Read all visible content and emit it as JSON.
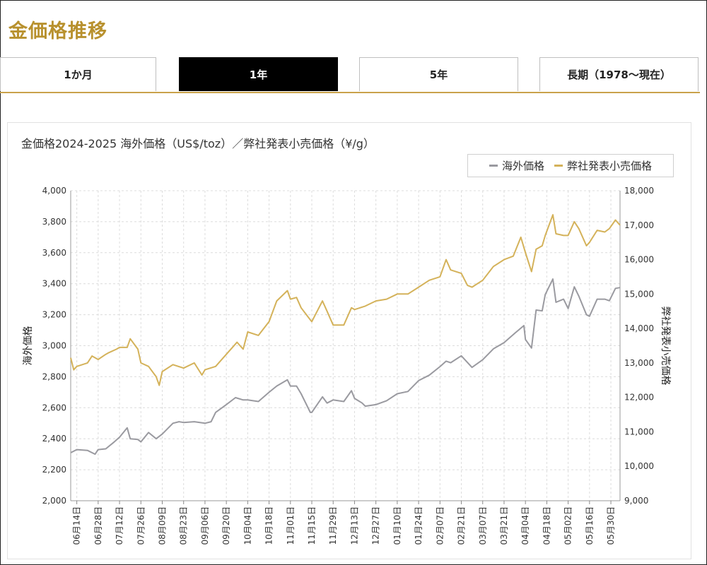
{
  "page_title": "金価格推移",
  "tabs": [
    {
      "label": "1か月",
      "active": false
    },
    {
      "label": "1年",
      "active": true
    },
    {
      "label": "5年",
      "active": false
    },
    {
      "label": "長期（1978〜現在）",
      "active": false
    }
  ],
  "colors": {
    "accent": "#b8912e",
    "overseas": "#9a9aa0",
    "retail": "#d4b25a"
  },
  "chart_data": {
    "type": "line",
    "title": "金価格2024-2025 海外価格（US$/toz）／弊社発表小売価格（¥/g）",
    "y_left_label": "海外価格",
    "y_right_label": "弊社発表小売価格",
    "y_left_range": [
      2000,
      4000
    ],
    "y_right_range": [
      9000,
      18000
    ],
    "y_left_ticks": [
      "2,000",
      "2,200",
      "2,400",
      "2,600",
      "2,800",
      "3,000",
      "3,200",
      "3,400",
      "3,600",
      "3,800",
      "4,000"
    ],
    "y_right_ticks": [
      "9,000",
      "10,000",
      "11,000",
      "12,000",
      "13,000",
      "14,000",
      "15,000",
      "16,000",
      "17,000",
      "18,000"
    ],
    "x_range": [
      "2024-06-10",
      "2025-06-05"
    ],
    "x_tick_dates": [
      "2024-06-14",
      "2024-06-28",
      "2024-07-12",
      "2024-07-26",
      "2024-08-09",
      "2024-08-23",
      "2024-09-06",
      "2024-09-20",
      "2024-10-04",
      "2024-10-18",
      "2024-11-01",
      "2024-11-15",
      "2024-11-29",
      "2024-12-13",
      "2024-12-27",
      "2025-01-10",
      "2025-01-24",
      "2025-02-07",
      "2025-02-21",
      "2025-03-07",
      "2025-03-21",
      "2025-04-04",
      "2025-04-18",
      "2025-05-02",
      "2025-05-16",
      "2025-05-30"
    ],
    "x_tick_labels": [
      "06月14日",
      "06月28日",
      "07月12日",
      "07月26日",
      "08月09日",
      "08月23日",
      "09月06日",
      "09月20日",
      "10月04日",
      "10月18日",
      "11月01日",
      "11月15日",
      "11月29日",
      "12月13日",
      "12月27日",
      "01月10日",
      "01月24日",
      "02月07日",
      "02月21日",
      "03月07日",
      "03月21日",
      "04月04日",
      "04月18日",
      "05月02日",
      "05月16日",
      "05月30日"
    ],
    "grid": true,
    "legend_position": "top-right",
    "series": [
      {
        "name": "海外価格",
        "color": "#9a9aa0",
        "axis": "left",
        "points": [
          [
            "2024-06-10",
            2310
          ],
          [
            "2024-06-14",
            2330
          ],
          [
            "2024-06-21",
            2325
          ],
          [
            "2024-06-26",
            2300
          ],
          [
            "2024-06-28",
            2330
          ],
          [
            "2024-07-03",
            2335
          ],
          [
            "2024-07-08",
            2375
          ],
          [
            "2024-07-12",
            2410
          ],
          [
            "2024-07-17",
            2470
          ],
          [
            "2024-07-19",
            2400
          ],
          [
            "2024-07-24",
            2395
          ],
          [
            "2024-07-26",
            2380
          ],
          [
            "2024-07-31",
            2440
          ],
          [
            "2024-08-05",
            2400
          ],
          [
            "2024-08-09",
            2430
          ],
          [
            "2024-08-16",
            2500
          ],
          [
            "2024-08-20",
            2510
          ],
          [
            "2024-08-23",
            2505
          ],
          [
            "2024-08-30",
            2510
          ],
          [
            "2024-09-06",
            2500
          ],
          [
            "2024-09-10",
            2510
          ],
          [
            "2024-09-13",
            2570
          ],
          [
            "2024-09-20",
            2620
          ],
          [
            "2024-09-26",
            2665
          ],
          [
            "2024-10-01",
            2650
          ],
          [
            "2024-10-04",
            2650
          ],
          [
            "2024-10-11",
            2640
          ],
          [
            "2024-10-18",
            2700
          ],
          [
            "2024-10-23",
            2740
          ],
          [
            "2024-10-30",
            2780
          ],
          [
            "2024-11-01",
            2740
          ],
          [
            "2024-11-05",
            2740
          ],
          [
            "2024-11-08",
            2690
          ],
          [
            "2024-11-14",
            2570
          ],
          [
            "2024-11-15",
            2570
          ],
          [
            "2024-11-22",
            2670
          ],
          [
            "2024-11-25",
            2630
          ],
          [
            "2024-11-29",
            2650
          ],
          [
            "2024-12-06",
            2640
          ],
          [
            "2024-12-11",
            2710
          ],
          [
            "2024-12-13",
            2660
          ],
          [
            "2024-12-18",
            2630
          ],
          [
            "2024-12-20",
            2610
          ],
          [
            "2024-12-27",
            2620
          ],
          [
            "2025-01-03",
            2645
          ],
          [
            "2025-01-10",
            2690
          ],
          [
            "2025-01-17",
            2705
          ],
          [
            "2025-01-24",
            2775
          ],
          [
            "2025-01-31",
            2810
          ],
          [
            "2025-02-07",
            2865
          ],
          [
            "2025-02-11",
            2900
          ],
          [
            "2025-02-14",
            2890
          ],
          [
            "2025-02-21",
            2935
          ],
          [
            "2025-02-28",
            2860
          ],
          [
            "2025-03-07",
            2910
          ],
          [
            "2025-03-14",
            2980
          ],
          [
            "2025-03-21",
            3020
          ],
          [
            "2025-03-28",
            3080
          ],
          [
            "2025-04-03",
            3130
          ],
          [
            "2025-04-04",
            3040
          ],
          [
            "2025-04-08",
            2985
          ],
          [
            "2025-04-11",
            3230
          ],
          [
            "2025-04-15",
            3225
          ],
          [
            "2025-04-17",
            3330
          ],
          [
            "2025-04-22",
            3430
          ],
          [
            "2025-04-24",
            3280
          ],
          [
            "2025-04-29",
            3300
          ],
          [
            "2025-05-02",
            3240
          ],
          [
            "2025-05-06",
            3380
          ],
          [
            "2025-05-09",
            3320
          ],
          [
            "2025-05-14",
            3200
          ],
          [
            "2025-05-16",
            3190
          ],
          [
            "2025-05-21",
            3300
          ],
          [
            "2025-05-26",
            3300
          ],
          [
            "2025-05-29",
            3290
          ],
          [
            "2025-06-02",
            3370
          ],
          [
            "2025-06-05",
            3375
          ]
        ]
      },
      {
        "name": "弊社発表小売価格",
        "color": "#d4b25a",
        "axis": "right",
        "points": [
          [
            "2024-06-10",
            13150
          ],
          [
            "2024-06-12",
            12800
          ],
          [
            "2024-06-14",
            12900
          ],
          [
            "2024-06-21",
            13000
          ],
          [
            "2024-06-24",
            13200
          ],
          [
            "2024-06-28",
            13100
          ],
          [
            "2024-07-03",
            13250
          ],
          [
            "2024-07-05",
            13300
          ],
          [
            "2024-07-10",
            13400
          ],
          [
            "2024-07-12",
            13450
          ],
          [
            "2024-07-17",
            13450
          ],
          [
            "2024-07-19",
            13700
          ],
          [
            "2024-07-24",
            13400
          ],
          [
            "2024-07-26",
            13000
          ],
          [
            "2024-07-31",
            12900
          ],
          [
            "2024-08-05",
            12600
          ],
          [
            "2024-08-07",
            12350
          ],
          [
            "2024-08-09",
            12750
          ],
          [
            "2024-08-16",
            12950
          ],
          [
            "2024-08-23",
            12850
          ],
          [
            "2024-08-30",
            13000
          ],
          [
            "2024-09-04",
            12650
          ],
          [
            "2024-09-06",
            12800
          ],
          [
            "2024-09-13",
            12900
          ],
          [
            "2024-09-20",
            13250
          ],
          [
            "2024-09-27",
            13600
          ],
          [
            "2024-10-01",
            13400
          ],
          [
            "2024-10-04",
            13900
          ],
          [
            "2024-10-11",
            13800
          ],
          [
            "2024-10-18",
            14200
          ],
          [
            "2024-10-23",
            14800
          ],
          [
            "2024-10-30",
            15100
          ],
          [
            "2024-11-01",
            14850
          ],
          [
            "2024-11-05",
            14900
          ],
          [
            "2024-11-08",
            14600
          ],
          [
            "2024-11-14",
            14250
          ],
          [
            "2024-11-15",
            14200
          ],
          [
            "2024-11-22",
            14800
          ],
          [
            "2024-11-25",
            14500
          ],
          [
            "2024-11-29",
            14100
          ],
          [
            "2024-12-06",
            14100
          ],
          [
            "2024-12-11",
            14600
          ],
          [
            "2024-12-13",
            14550
          ],
          [
            "2024-12-20",
            14650
          ],
          [
            "2024-12-27",
            14800
          ],
          [
            "2025-01-03",
            14850
          ],
          [
            "2025-01-10",
            15000
          ],
          [
            "2025-01-17",
            15000
          ],
          [
            "2025-01-24",
            15200
          ],
          [
            "2025-01-31",
            15400
          ],
          [
            "2025-02-07",
            15500
          ],
          [
            "2025-02-11",
            16000
          ],
          [
            "2025-02-14",
            15700
          ],
          [
            "2025-02-21",
            15600
          ],
          [
            "2025-02-25",
            15250
          ],
          [
            "2025-02-28",
            15200
          ],
          [
            "2025-03-07",
            15400
          ],
          [
            "2025-03-14",
            15800
          ],
          [
            "2025-03-21",
            16000
          ],
          [
            "2025-03-27",
            16100
          ],
          [
            "2025-04-01",
            16650
          ],
          [
            "2025-04-04",
            16200
          ],
          [
            "2025-04-08",
            15650
          ],
          [
            "2025-04-11",
            16300
          ],
          [
            "2025-04-15",
            16400
          ],
          [
            "2025-04-17",
            16700
          ],
          [
            "2025-04-22",
            17300
          ],
          [
            "2025-04-24",
            16750
          ],
          [
            "2025-04-29",
            16700
          ],
          [
            "2025-05-02",
            16700
          ],
          [
            "2025-05-06",
            17100
          ],
          [
            "2025-05-09",
            16900
          ],
          [
            "2025-05-14",
            16400
          ],
          [
            "2025-05-16",
            16500
          ],
          [
            "2025-05-21",
            16850
          ],
          [
            "2025-05-26",
            16800
          ],
          [
            "2025-05-29",
            16900
          ],
          [
            "2025-06-02",
            17150
          ],
          [
            "2025-06-05",
            17000
          ]
        ]
      }
    ]
  }
}
